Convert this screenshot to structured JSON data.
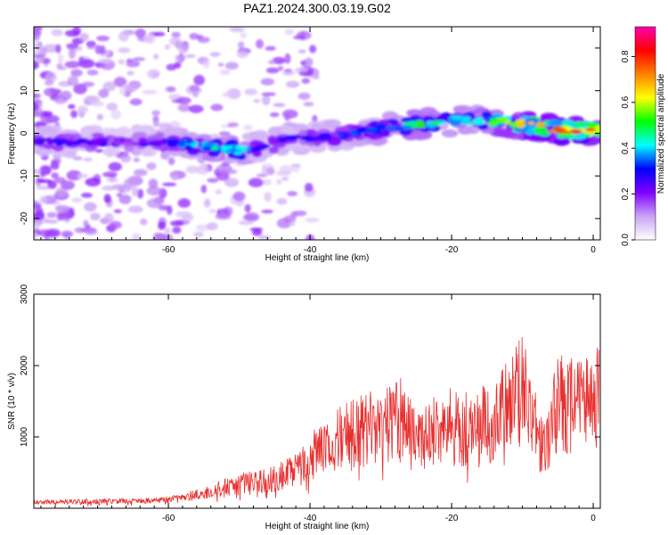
{
  "figure": {
    "title": "PAZ1.2024.300.03.19.G02"
  },
  "chart_data": [
    {
      "type": "heatmap",
      "xlabel": "Height of straight line (km)",
      "ylabel": "Frequency (Hz)",
      "xlim": [
        -79,
        1
      ],
      "ylim": [
        -25,
        25
      ],
      "x_ticks": [
        -60,
        -40,
        -20,
        0
      ],
      "y_ticks": [
        -20,
        -10,
        0,
        10,
        20
      ],
      "colorbar": {
        "label": "Normalized spectral amplitude",
        "range": [
          0,
          0.93
        ],
        "ticks": [
          0.0,
          0.2,
          0.4,
          0.6,
          0.8
        ],
        "colormap": [
          "#ffffff",
          "#c9a3f5",
          "#8000ff",
          "#0000ff",
          "#00ffff",
          "#00ff00",
          "#ffff00",
          "#ff8000",
          "#ff0000",
          "#ff00b0"
        ]
      },
      "ridge": {
        "x": [
          -78,
          -70,
          -65,
          -60,
          -55,
          -50,
          -47,
          -44,
          -40,
          -35,
          -30,
          -25,
          -20,
          -15,
          -10,
          -5,
          0
        ],
        "frequency": [
          -2,
          -2,
          -2,
          -2,
          -3,
          -4,
          -3,
          -2,
          -1,
          -0.5,
          1,
          2,
          3,
          3,
          2,
          1,
          0.5
        ],
        "amplitude": [
          0.3,
          0.3,
          0.2,
          0.35,
          0.45,
          0.5,
          0.3,
          0.35,
          0.3,
          0.35,
          0.4,
          0.55,
          0.45,
          0.55,
          0.75,
          0.8,
          0.85
        ]
      }
    },
    {
      "type": "line",
      "xlabel": "Height of straight line (km)",
      "ylabel": "SNR (10 * v/v)",
      "xlim": [
        -79,
        1
      ],
      "ylim": [
        0,
        3000
      ],
      "x_ticks": [
        -60,
        -40,
        -20,
        0
      ],
      "y_ticks": [
        1000,
        2000,
        3000
      ],
      "color": "#e8302f",
      "series": [
        {
          "x": [
            -79,
            -75,
            -70,
            -65,
            -60,
            -55,
            -52,
            -49,
            -46,
            -43,
            -40,
            -38,
            -36,
            -34,
            -32,
            -30,
            -28,
            -26,
            -24,
            -22,
            -20,
            -18,
            -16,
            -14,
            -12,
            -10,
            -8,
            -7,
            -6,
            -5,
            -4,
            -3,
            -2,
            -1,
            0
          ],
          "values": [
            120,
            130,
            130,
            140,
            160,
            300,
            420,
            520,
            560,
            720,
            1000,
            1350,
            1500,
            1550,
            1650,
            1700,
            1850,
            1800,
            1400,
            1650,
            1700,
            1650,
            1700,
            1800,
            2200,
            2500,
            1600,
            1150,
            1700,
            2100,
            2200,
            2100,
            2100,
            2150,
            2350
          ]
        }
      ]
    }
  ]
}
